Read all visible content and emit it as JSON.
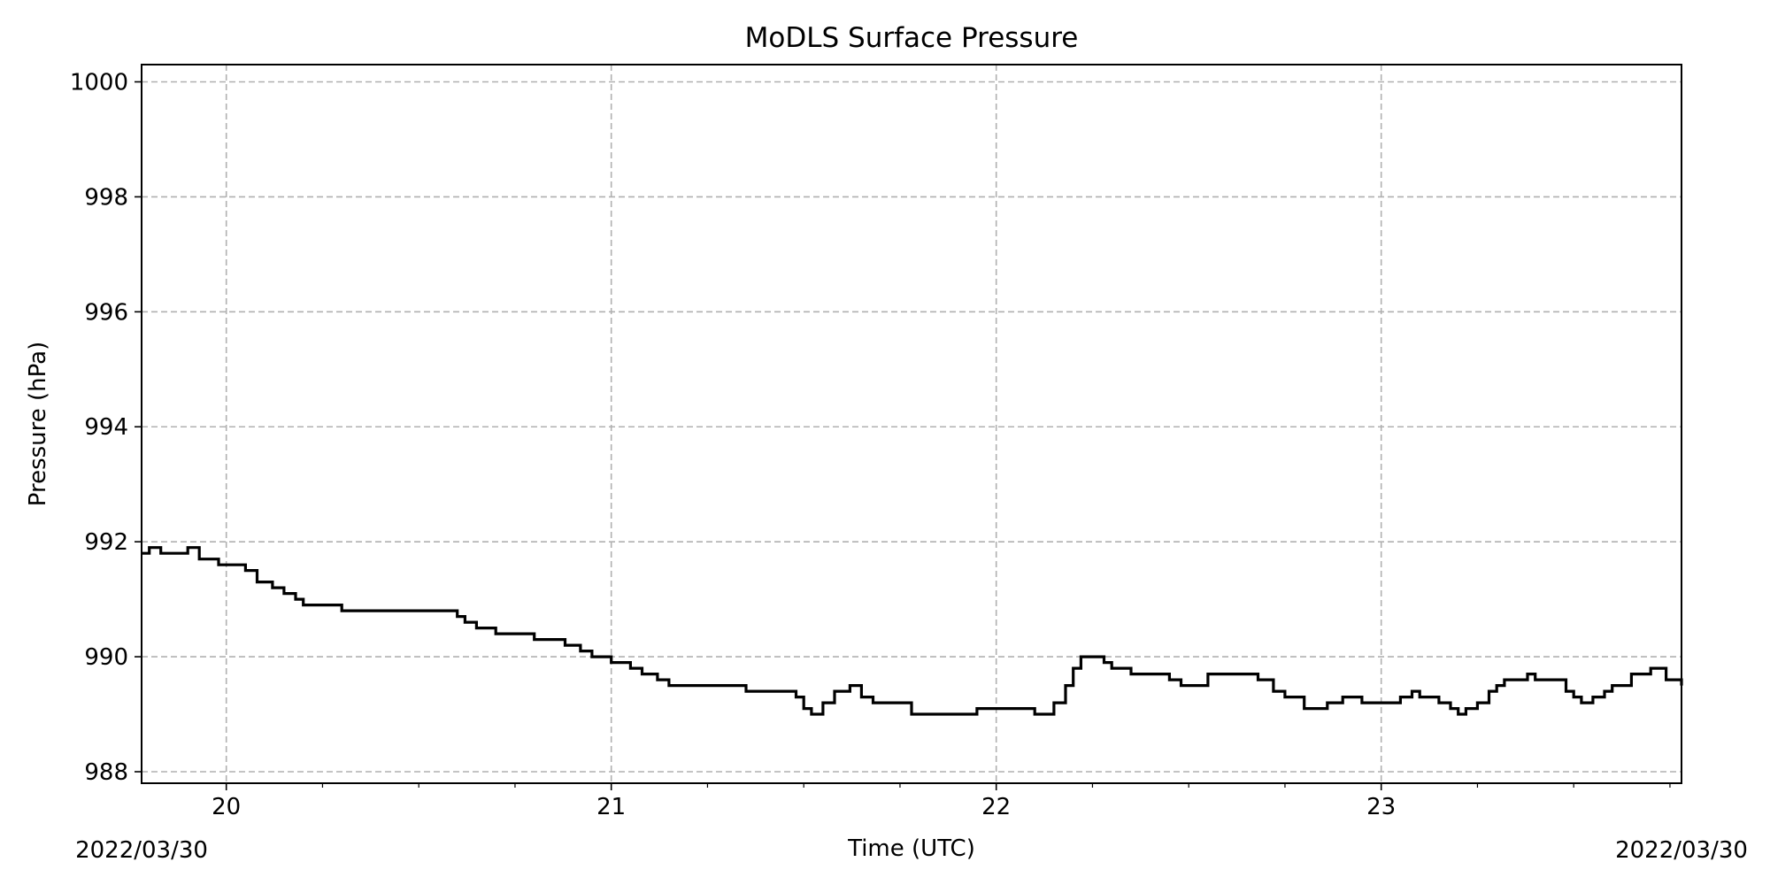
{
  "chart_data": {
    "type": "line",
    "title": "MoDLS Surface Pressure",
    "xlabel": "Time (UTC)",
    "ylabel": "Pressure (hPa)",
    "date_left": "2022/03/30",
    "date_right": "2022/03/30",
    "xlim": [
      19.78,
      23.78
    ],
    "ylim": [
      987.8,
      1000.3
    ],
    "x_ticks": [
      20,
      21,
      22,
      23
    ],
    "x_tick_labels": [
      "20",
      "21",
      "22",
      "23"
    ],
    "y_ticks": [
      988,
      990,
      992,
      994,
      996,
      998,
      1000
    ],
    "y_tick_labels": [
      "988",
      "990",
      "992",
      "994",
      "996",
      "998",
      "1000"
    ],
    "grid": true,
    "legend": "none",
    "line_color": "#000000",
    "series": [
      {
        "x": [
          19.78,
          19.8,
          19.83,
          19.9,
          19.93,
          19.96,
          19.98,
          20.02,
          20.05,
          20.08,
          20.12,
          20.15,
          20.18,
          20.2,
          20.24,
          20.3,
          20.35,
          20.4,
          20.45,
          20.5,
          20.55,
          20.6,
          20.62,
          20.65,
          20.7,
          20.75,
          20.8,
          20.85,
          20.88,
          20.92,
          20.95,
          21.0,
          21.02,
          21.05,
          21.08,
          21.12,
          21.15,
          21.2,
          21.25,
          21.3,
          21.35,
          21.4,
          21.45,
          21.48,
          21.5,
          21.52,
          21.55,
          21.58,
          21.62,
          21.65,
          21.68,
          21.72,
          21.75,
          21.78,
          21.8,
          21.85,
          21.9,
          21.95,
          22.0,
          22.05,
          22.1,
          22.12,
          22.15,
          22.18,
          22.2,
          22.22,
          22.25,
          22.28,
          22.3,
          22.35,
          22.4,
          22.45,
          22.48,
          22.5,
          22.55,
          22.6,
          22.63,
          22.65,
          22.68,
          22.72,
          22.75,
          22.8,
          22.83,
          22.86,
          22.9,
          22.95,
          23.0,
          23.05,
          23.08,
          23.1,
          23.12,
          23.15,
          23.18,
          23.2,
          23.22,
          23.25,
          23.28,
          23.3,
          23.32,
          23.35,
          23.38,
          23.4,
          23.42,
          23.45,
          23.48,
          23.5,
          23.52,
          23.55,
          23.58,
          23.6,
          23.65,
          23.7,
          23.74,
          23.78
        ],
        "values": [
          991.8,
          991.9,
          991.8,
          991.9,
          991.7,
          991.7,
          991.6,
          991.6,
          991.5,
          991.3,
          991.2,
          991.1,
          991.0,
          990.9,
          990.9,
          990.8,
          990.8,
          990.8,
          990.8,
          990.8,
          990.8,
          990.7,
          990.6,
          990.5,
          990.4,
          990.4,
          990.3,
          990.3,
          990.2,
          990.1,
          990.0,
          989.9,
          989.9,
          989.8,
          989.7,
          989.6,
          989.5,
          989.5,
          989.5,
          989.5,
          989.4,
          989.4,
          989.4,
          989.3,
          989.1,
          989.0,
          989.2,
          989.4,
          989.5,
          989.3,
          989.2,
          989.2,
          989.2,
          989.0,
          989.0,
          989.0,
          989.0,
          989.1,
          989.1,
          989.1,
          989.0,
          989.0,
          989.2,
          989.5,
          989.8,
          990.0,
          990.0,
          989.9,
          989.8,
          989.7,
          989.7,
          989.6,
          989.5,
          989.5,
          989.7,
          989.7,
          989.7,
          989.7,
          989.6,
          989.4,
          989.3,
          989.1,
          989.1,
          989.2,
          989.3,
          989.2,
          989.2,
          989.3,
          989.4,
          989.3,
          989.3,
          989.2,
          989.1,
          989.0,
          989.1,
          989.2,
          989.4,
          989.5,
          989.6,
          989.6,
          989.7,
          989.6,
          989.6,
          989.6,
          989.4,
          989.3,
          989.2,
          989.3,
          989.4,
          989.5,
          989.7,
          989.8,
          989.6,
          989.5
        ]
      }
    ]
  }
}
